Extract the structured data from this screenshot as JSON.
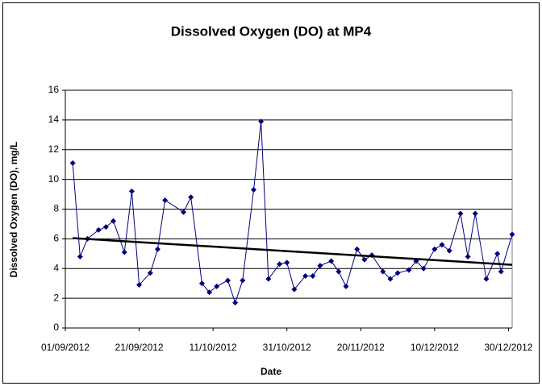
{
  "chart_data": {
    "type": "line",
    "title": "Dissolved Oxygen (DO) at MP4",
    "x_label": "Date",
    "y_label": "Dissolved Oxygen (DO), mg/L",
    "x": [
      "2012-09-03",
      "2012-09-05",
      "2012-09-07",
      "2012-09-10",
      "2012-09-12",
      "2012-09-14",
      "2012-09-17",
      "2012-09-19",
      "2012-09-21",
      "2012-09-24",
      "2012-09-26",
      "2012-09-28",
      "2012-10-03",
      "2012-10-05",
      "2012-10-08",
      "2012-10-10",
      "2012-10-12",
      "2012-10-15",
      "2012-10-17",
      "2012-10-19",
      "2012-10-22",
      "2012-10-24",
      "2012-10-26",
      "2012-10-29",
      "2012-10-31",
      "2012-11-02",
      "2012-11-05",
      "2012-11-07",
      "2012-11-09",
      "2012-11-12",
      "2012-11-14",
      "2012-11-16",
      "2012-11-19",
      "2012-11-21",
      "2012-11-23",
      "2012-11-26",
      "2012-11-28",
      "2012-11-30",
      "2012-12-03",
      "2012-12-05",
      "2012-12-07",
      "2012-12-10",
      "2012-12-12",
      "2012-12-14",
      "2012-12-17",
      "2012-12-19",
      "2012-12-21",
      "2012-12-24",
      "2012-12-27",
      "2012-12-28",
      "2012-12-31"
    ],
    "series": [
      {
        "color": "#000080",
        "values": [
          11.1,
          4.8,
          6.0,
          6.6,
          6.8,
          7.2,
          5.1,
          9.2,
          2.9,
          3.7,
          5.3,
          8.6,
          7.8,
          8.8,
          3.0,
          2.4,
          2.8,
          3.2,
          1.7,
          3.2,
          9.3,
          13.9,
          3.3,
          4.3,
          4.4,
          2.6,
          3.5,
          3.5,
          4.2,
          4.5,
          3.8,
          2.8,
          5.3,
          4.6,
          4.9,
          3.8,
          3.3,
          3.7,
          3.9,
          4.5,
          4.0,
          5.3,
          5.6,
          5.2,
          7.7,
          4.8,
          7.7,
          3.3,
          5.0,
          3.8,
          6.3
        ]
      }
    ],
    "trendline": {
      "color": "#000000",
      "x": [
        "2012-09-03",
        "2012-12-31"
      ],
      "values": [
        6.05,
        4.25
      ]
    },
    "xlim": [
      "2012-09-01",
      "2012-12-31"
    ],
    "xticks": [
      {
        "value": "2012-09-01",
        "label": "01/09/2012"
      },
      {
        "value": "2012-09-21",
        "label": "21/09/2012"
      },
      {
        "value": "2012-10-11",
        "label": "11/10/2012"
      },
      {
        "value": "2012-10-31",
        "label": "31/10/2012"
      },
      {
        "value": "2012-11-20",
        "label": "20/11/2012"
      },
      {
        "value": "2012-12-10",
        "label": "10/12/2012"
      },
      {
        "value": "2012-12-30",
        "label": "30/12/2012"
      }
    ],
    "ylim": [
      0,
      16
    ],
    "yticks": [
      0,
      2,
      4,
      6,
      8,
      10,
      12,
      14,
      16
    ],
    "grid": true
  }
}
